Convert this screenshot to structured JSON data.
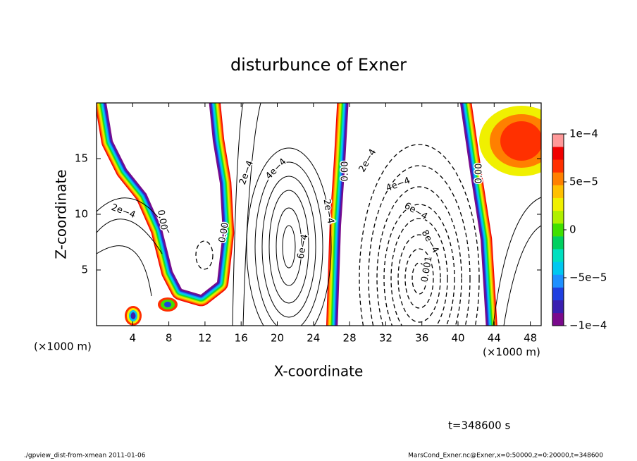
{
  "chart_data": {
    "type": "contour",
    "title": "disturbunce of Exner",
    "xlabel": "X-coordinate",
    "ylabel": "Z-coordinate",
    "xunit": "(×1000 m)",
    "xlim": [
      0,
      49.2
    ],
    "xticks": [
      4,
      8,
      12,
      16,
      20,
      24,
      28,
      32,
      36,
      40,
      44,
      48
    ],
    "ylim": [
      0,
      20
    ],
    "yticks": [
      5,
      10,
      15
    ],
    "colorbar": {
      "lim": [
        -0.0001,
        0.0001
      ],
      "ticks": [
        {
          "value": -0.0001,
          "label": "−1e−4"
        },
        {
          "value": -5e-05,
          "label": "−5e−5"
        },
        0,
        {
          "value": 5e-05,
          "label": "5e−5"
        },
        {
          "value": 0.0001,
          "label": "1e−4"
        }
      ],
      "colors": [
        "#7a0a8c",
        "#3a1fb0",
        "#1f3fe0",
        "#1e90ff",
        "#00c8f0",
        "#00e0c0",
        "#00d060",
        "#40e000",
        "#b0f000",
        "#f0f000",
        "#ffc000",
        "#ff8000",
        "#ff3000",
        "#f00000",
        "#ff9999"
      ]
    },
    "contour_labels": [
      "2e−4",
      "0.00",
      "0.00",
      "2e−4",
      "4e−4",
      "6e−4",
      "2e−4",
      "0.00",
      "2e−4",
      "4e−4",
      "6e−4",
      "8e−4",
      "0.001",
      "0.00"
    ],
    "time_label": "t=348600 s",
    "footer_left": "./gpview_dist-from-xmean  2011-01-06",
    "footer_right": "MarsCond_Exner.nc@Exner,x=0:50000,z=0:20000,t=348600"
  }
}
